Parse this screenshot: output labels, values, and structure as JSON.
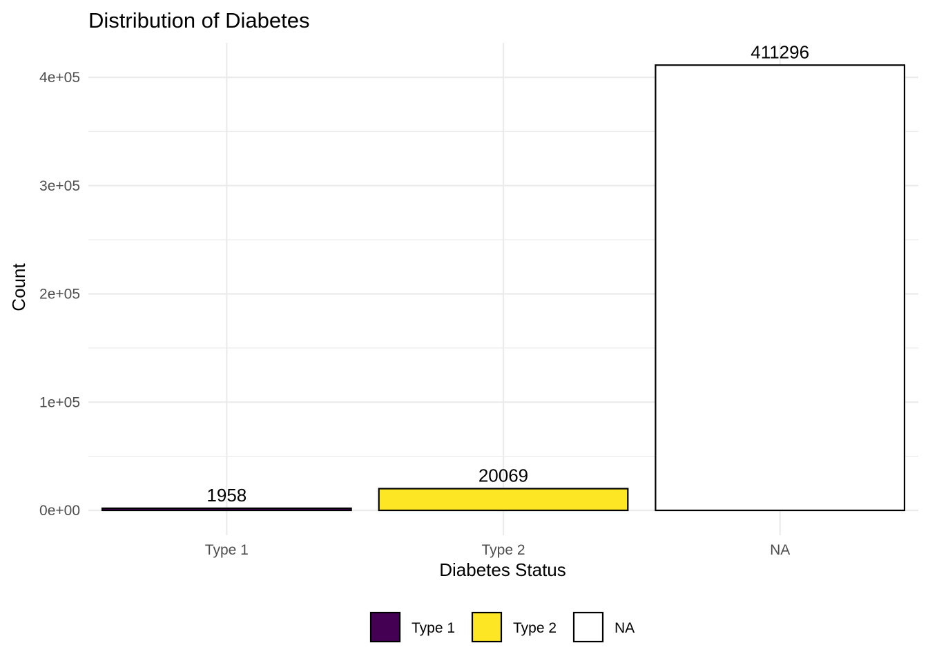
{
  "chart_data": {
    "type": "bar",
    "title": "Distribution of Diabetes",
    "xlabel": "Diabetes Status",
    "ylabel": "Count",
    "categories": [
      "Type 1",
      "Type 2",
      "NA"
    ],
    "values": [
      1958,
      20069,
      411296
    ],
    "data_labels": [
      "1958",
      "20069",
      "411296"
    ],
    "colors": [
      "#440154",
      "#FDE725",
      "#FFFFFF"
    ],
    "outline_color": "#000000",
    "ylim": [
      0,
      430000
    ],
    "yticks": [
      0,
      100000,
      200000,
      300000,
      400000
    ],
    "ytick_labels": [
      "0e+00",
      "1e+05",
      "2e+05",
      "3e+05",
      "4e+05"
    ],
    "grid": true,
    "legend": {
      "position": "bottom",
      "entries": [
        {
          "label": "Type 1",
          "color": "#440154"
        },
        {
          "label": "Type 2",
          "color": "#FDE725"
        },
        {
          "label": "NA",
          "color": "#FFFFFF"
        }
      ]
    }
  }
}
